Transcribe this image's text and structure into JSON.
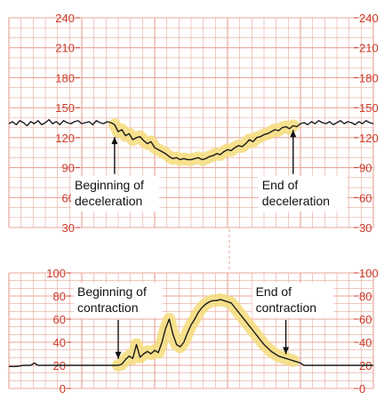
{
  "chart_data": [
    {
      "type": "line",
      "name": "",
      "ylim": [
        30,
        240
      ],
      "yticks": [
        30,
        60,
        90,
        120,
        150,
        180,
        210,
        240
      ],
      "grid": true,
      "colors": {
        "grid": "#e8a79b",
        "trace": "#1a1a1a",
        "highlight": "#f5dc7a",
        "ticks": "#cc3a2a"
      },
      "x": [
        0,
        0.01,
        0.02,
        0.03,
        0.04,
        0.05,
        0.06,
        0.07,
        0.08,
        0.09,
        0.1,
        0.11,
        0.12,
        0.13,
        0.14,
        0.15,
        0.16,
        0.17,
        0.18,
        0.19,
        0.2,
        0.21,
        0.22,
        0.23,
        0.24,
        0.25,
        0.26,
        0.27,
        0.28,
        0.29,
        0.3,
        0.31,
        0.32,
        0.33,
        0.34,
        0.35,
        0.36,
        0.37,
        0.38,
        0.39,
        0.4,
        0.41,
        0.42,
        0.43,
        0.44,
        0.45,
        0.46,
        0.47,
        0.48,
        0.49,
        0.5,
        0.51,
        0.52,
        0.53,
        0.54,
        0.55,
        0.56,
        0.57,
        0.58,
        0.59,
        0.6,
        0.61,
        0.62,
        0.63,
        0.64,
        0.65,
        0.66,
        0.67,
        0.68,
        0.69,
        0.7,
        0.71,
        0.72,
        0.73,
        0.74,
        0.75,
        0.76,
        0.77,
        0.78,
        0.79,
        0.8,
        0.81,
        0.82,
        0.83,
        0.84,
        0.85,
        0.86,
        0.87,
        0.88,
        0.89,
        0.9,
        0.91,
        0.92,
        0.93,
        0.94,
        0.95,
        0.96,
        0.97,
        0.98,
        0.99,
        1.0
      ],
      "values": [
        134,
        136,
        133,
        137,
        135,
        132,
        136,
        134,
        137,
        133,
        135,
        138,
        134,
        136,
        133,
        137,
        135,
        134,
        136,
        137,
        134,
        135,
        136,
        133,
        137,
        135,
        134,
        136,
        135,
        133,
        126,
        128,
        122,
        124,
        118,
        120,
        121,
        117,
        114,
        116,
        110,
        108,
        106,
        104,
        101,
        99,
        100,
        98,
        99,
        98,
        98,
        99,
        100,
        98,
        99,
        101,
        102,
        104,
        103,
        106,
        108,
        107,
        110,
        112,
        111,
        114,
        118,
        116,
        120,
        121,
        123,
        124,
        126,
        128,
        127,
        130,
        131,
        129,
        132,
        131,
        134,
        135,
        133,
        136,
        134,
        137,
        135,
        134,
        136,
        133,
        135,
        137,
        134,
        136,
        135,
        133,
        136,
        134,
        137,
        135,
        134
      ],
      "highlight_range": [
        0.29,
        0.78
      ],
      "annotations": [
        {
          "text_lines": [
            "Beginning of",
            "deceleration"
          ],
          "x": 0.29,
          "y": 126,
          "label_y": 80,
          "align": "left"
        },
        {
          "text_lines": [
            "End of",
            "deceleration"
          ],
          "x": 0.78,
          "y": 133,
          "label_y": 80,
          "align": "left"
        }
      ]
    },
    {
      "type": "line",
      "name": "",
      "ylim": [
        0,
        100
      ],
      "yticks": [
        0,
        20,
        40,
        60,
        80,
        100
      ],
      "grid": true,
      "colors": {
        "grid": "#e8a79b",
        "trace": "#1a1a1a",
        "highlight": "#f5dc7a",
        "ticks": "#cc3a2a"
      },
      "x": [
        0,
        0.02,
        0.04,
        0.06,
        0.07,
        0.08,
        0.1,
        0.12,
        0.14,
        0.16,
        0.18,
        0.2,
        0.22,
        0.24,
        0.26,
        0.28,
        0.3,
        0.31,
        0.32,
        0.33,
        0.34,
        0.35,
        0.36,
        0.37,
        0.38,
        0.39,
        0.4,
        0.41,
        0.42,
        0.43,
        0.44,
        0.45,
        0.46,
        0.47,
        0.48,
        0.49,
        0.5,
        0.51,
        0.52,
        0.53,
        0.54,
        0.55,
        0.56,
        0.57,
        0.58,
        0.59,
        0.6,
        0.61,
        0.62,
        0.63,
        0.64,
        0.65,
        0.66,
        0.67,
        0.68,
        0.69,
        0.7,
        0.71,
        0.72,
        0.73,
        0.74,
        0.75,
        0.76,
        0.77,
        0.78,
        0.79,
        0.8,
        0.81,
        0.82,
        0.84,
        0.86,
        0.88,
        0.9,
        0.92,
        0.94,
        0.96,
        0.98,
        1.0
      ],
      "values": [
        19,
        19,
        20,
        20,
        22,
        20,
        20,
        20,
        20,
        20,
        20,
        20,
        20,
        20,
        20,
        20,
        20,
        21,
        25,
        28,
        26,
        38,
        27,
        30,
        32,
        30,
        33,
        31,
        40,
        52,
        60,
        47,
        38,
        36,
        40,
        48,
        55,
        60,
        66,
        70,
        73,
        75,
        76,
        76,
        77,
        76,
        75,
        74,
        70,
        66,
        62,
        58,
        54,
        50,
        46,
        42,
        38,
        35,
        32,
        30,
        28,
        27,
        26,
        25,
        24,
        23,
        22,
        20,
        20,
        20,
        20,
        20,
        20,
        20,
        20,
        20,
        20,
        20
      ],
      "highlight_range": [
        0.3,
        0.78
      ],
      "annotations": [
        {
          "text_lines": [
            "Beginning of",
            "contraction"
          ],
          "x": 0.3,
          "y": 21,
          "label_y": 90,
          "align": "left"
        },
        {
          "text_lines": [
            "End of",
            "contraction"
          ],
          "x": 0.76,
          "y": 25,
          "label_y": 90,
          "align": "left"
        }
      ]
    }
  ]
}
